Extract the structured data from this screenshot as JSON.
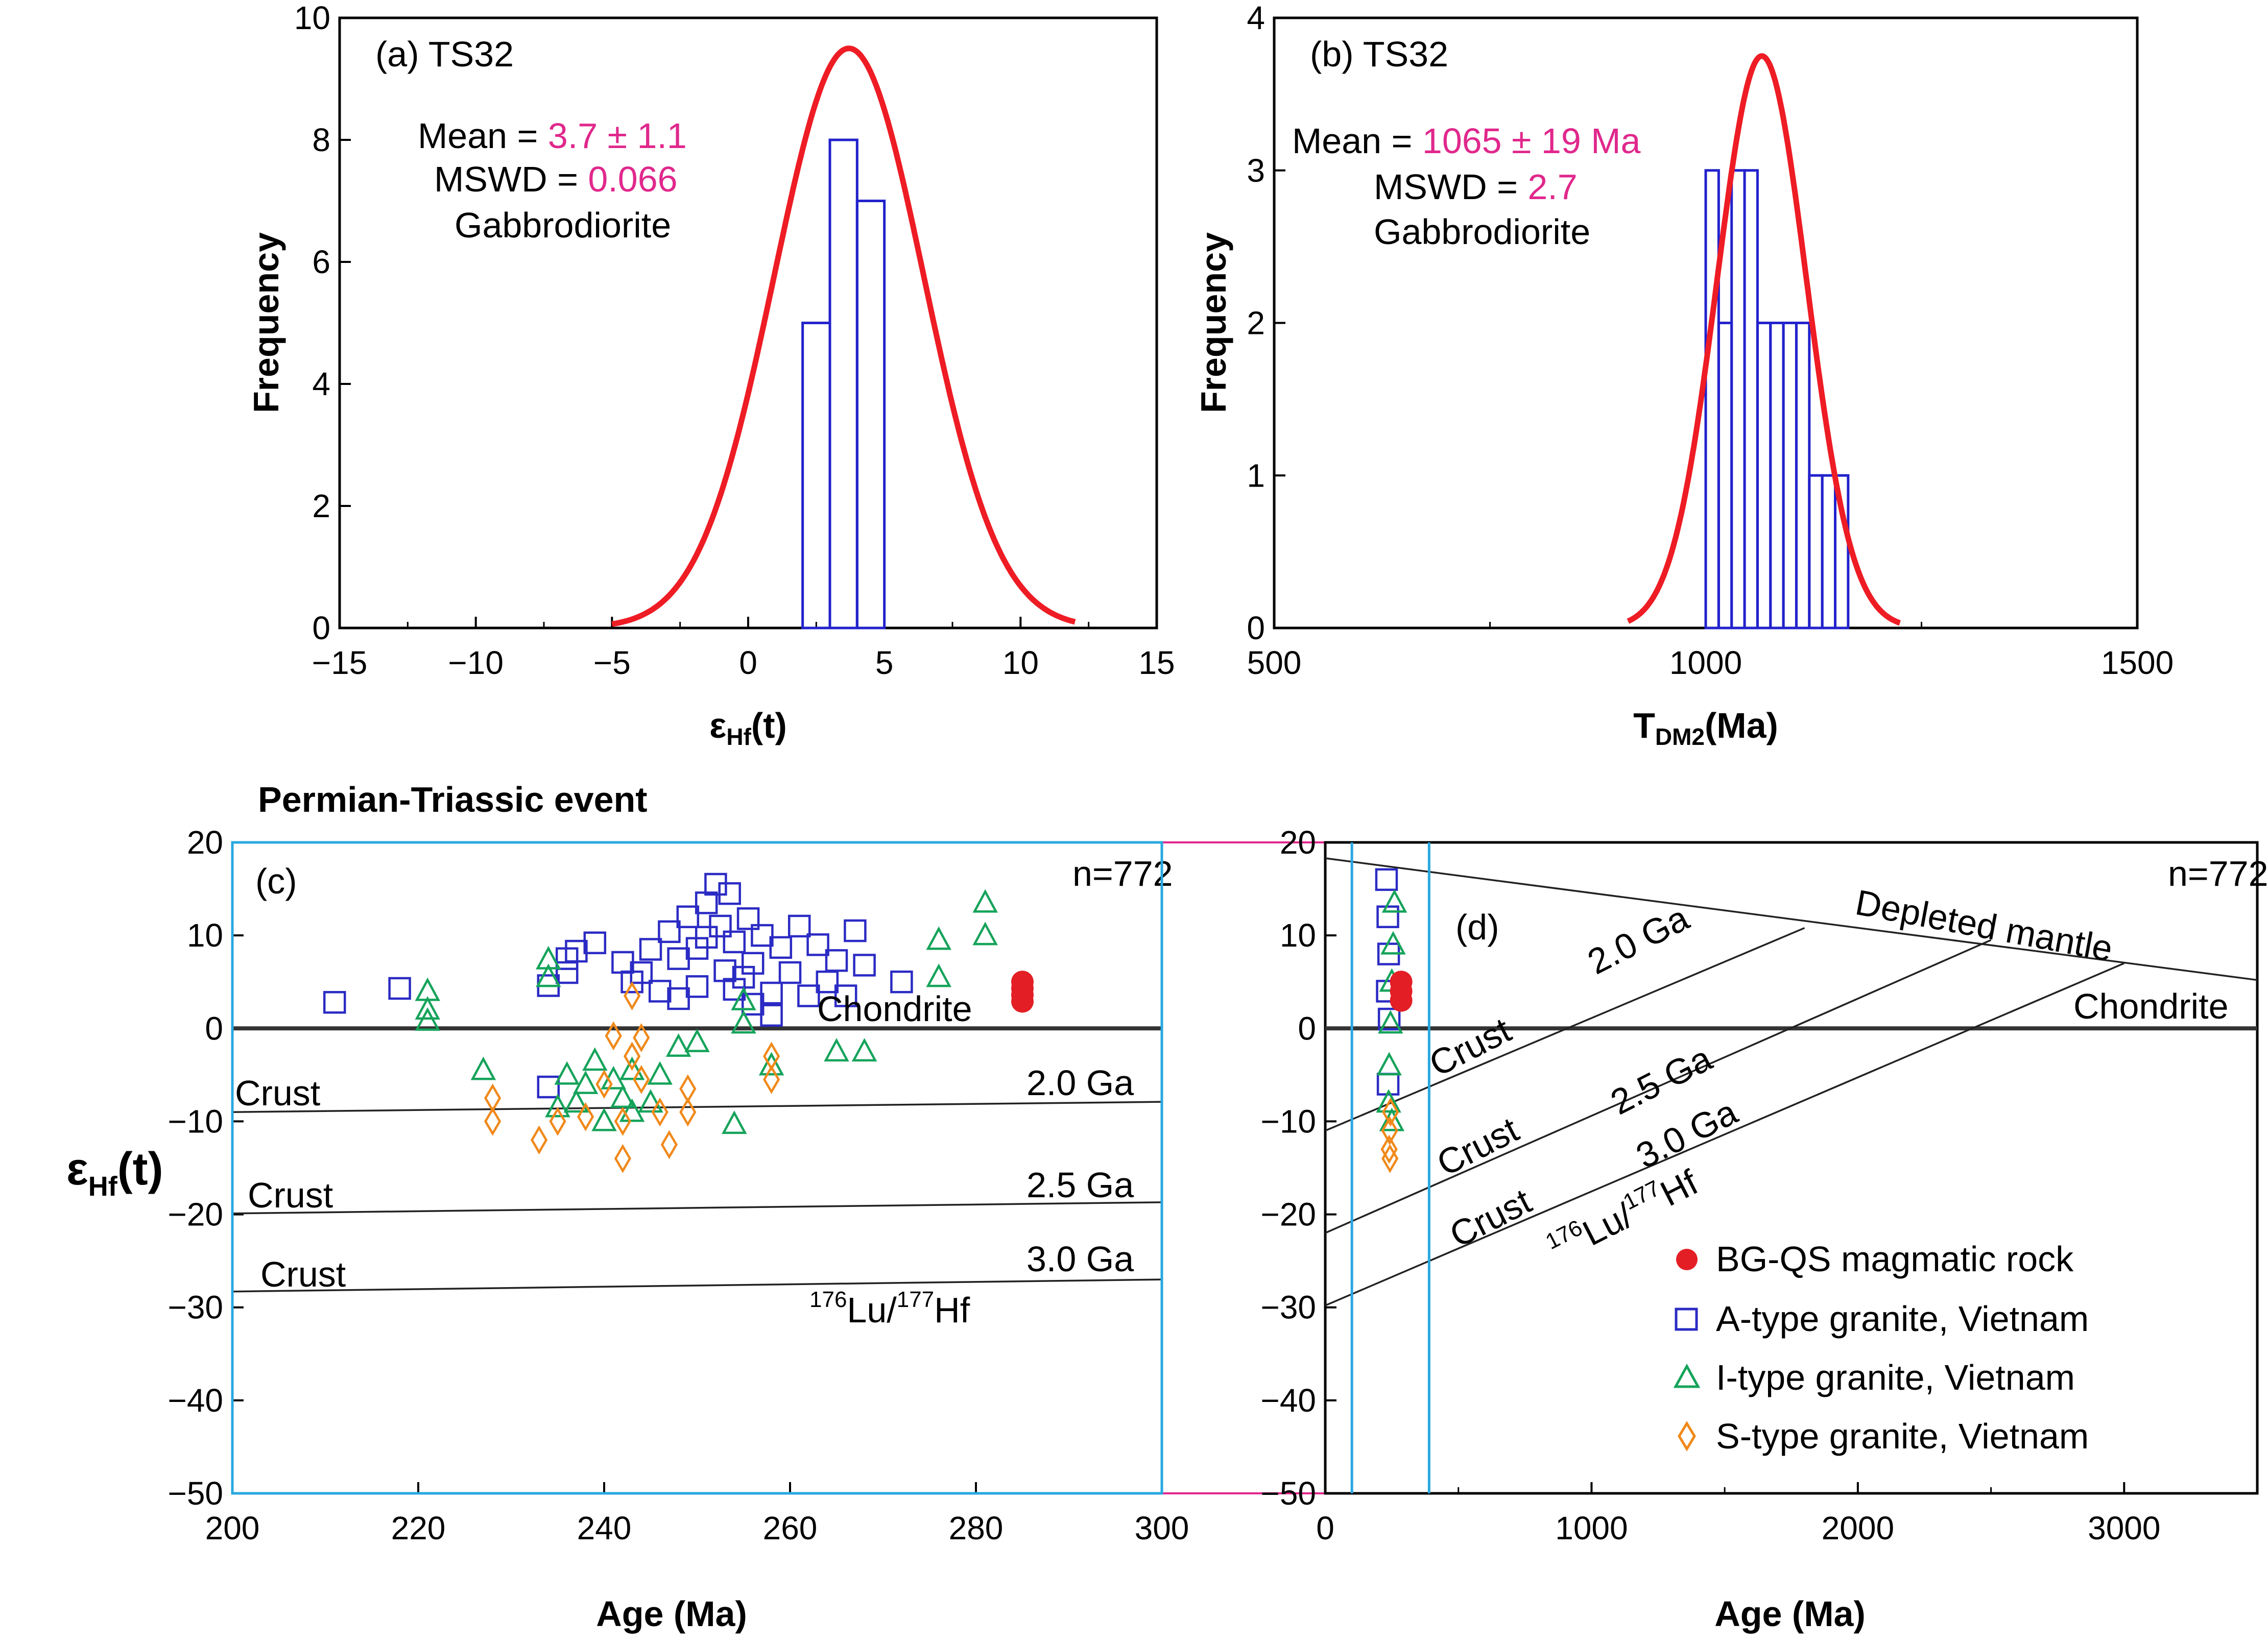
{
  "figure": {
    "section_title": "Permian-Triassic event"
  },
  "panel_a": {
    "label": "(a) TS32",
    "mean_label": "Mean = ",
    "mean_value": "3.7 ± 1.1",
    "mswd_label": "MSWD = ",
    "mswd_value": "0.066",
    "rock": "Gabbrodiorite",
    "xlabel_main": "ε",
    "xlabel_sub": "Hf",
    "xlabel_tail": "(t)",
    "ylabel": "Frequency"
  },
  "panel_b": {
    "label": "(b) TS32",
    "mean_label": "Mean = ",
    "mean_value": "1065 ± 19 Ma",
    "mswd_label": "MSWD = ",
    "mswd_value": "2.7",
    "rock": "Gabbrodiorite",
    "xlabel_main": "T",
    "xlabel_sub": "DM2",
    "xlabel_tail": "(Ma)",
    "ylabel": "Frequency"
  },
  "panel_c": {
    "label": "(c)",
    "n_label": "n=772",
    "xlabel": "Age (Ma)",
    "ylabel_main": "ε",
    "ylabel_sub": "Hf",
    "ylabel_tail": "(t)",
    "chondrite": "Chondrite",
    "crust": "Crust",
    "ga_2": "2.0 Ga",
    "ga_25": "2.5 Ga",
    "ga_3": "3.0 Ga",
    "lu_a": "176",
    "lu_b": "Lu/",
    "lu_c": "177",
    "lu_d": "Hf"
  },
  "panel_d": {
    "label": "(d)",
    "n_label": "n=772",
    "xlabel": "Age (Ma)",
    "depleted": "Depleted mantle",
    "chondrite": "Chondrite",
    "crust": "Crust",
    "ga_2": "2.0 Ga",
    "ga_25": "2.5 Ga",
    "ga_3": "3.0 Ga",
    "lu_a": "176",
    "lu_b": "Lu/",
    "lu_c": "177",
    "lu_d": "Hf"
  },
  "legend": {
    "bg_qs": "BG-QS magmatic rock",
    "a_type": "A-type granite, Vietnam",
    "i_type": "I-type granite, Vietnam",
    "s_type": "S-type granite, Vietnam"
  },
  "colors": {
    "red_curve": "#ee1c24",
    "histogram": "#2222cc",
    "a_type": "#2b2bc4",
    "i_type": "#15a35a",
    "s_type": "#f0891a",
    "bg_qs": "#e31e24",
    "zoom_box": "#29a8e0",
    "connector": "#e0288c",
    "magenta_text": "#e0288c"
  },
  "chart_data": [
    {
      "type": "bar",
      "panel": "a",
      "title": "(a) TS32",
      "xlabel": "εHf(t)",
      "ylabel": "Frequency",
      "xlim": [
        -15,
        15
      ],
      "ylim": [
        0,
        10
      ],
      "xticks": [
        -15,
        -10,
        -5,
        0,
        5,
        10,
        15
      ],
      "yticks": [
        0,
        2,
        4,
        6,
        8,
        10
      ],
      "bins": [
        {
          "x0": 2,
          "x1": 3,
          "count": 5
        },
        {
          "x0": 3,
          "x1": 4,
          "count": 8
        },
        {
          "x0": 4,
          "x1": 5,
          "count": 7
        }
      ],
      "curve": {
        "type": "gaussian",
        "mean": 3.7,
        "sd": 2.75,
        "peak": 9.5,
        "range": [
          -5,
          12
        ]
      }
    },
    {
      "type": "bar",
      "panel": "b",
      "title": "(b) TS32",
      "xlabel": "TDM2(Ma)",
      "ylabel": "Frequency",
      "xlim": [
        500,
        1500
      ],
      "ylim": [
        0,
        4
      ],
      "xticks": [
        500,
        1000,
        1500
      ],
      "yticks": [
        0,
        1,
        2,
        3,
        4
      ],
      "bins": [
        {
          "x0": 1000,
          "x1": 1015,
          "count": 3
        },
        {
          "x0": 1015,
          "x1": 1030,
          "count": 2
        },
        {
          "x0": 1030,
          "x1": 1045,
          "count": 3
        },
        {
          "x0": 1045,
          "x1": 1060,
          "count": 3
        },
        {
          "x0": 1060,
          "x1": 1075,
          "count": 2
        },
        {
          "x0": 1075,
          "x1": 1090,
          "count": 2
        },
        {
          "x0": 1090,
          "x1": 1105,
          "count": 2
        },
        {
          "x0": 1105,
          "x1": 1120,
          "count": 2
        },
        {
          "x0": 1120,
          "x1": 1135,
          "count": 1
        },
        {
          "x0": 1135,
          "x1": 1150,
          "count": 1
        },
        {
          "x0": 1150,
          "x1": 1165,
          "count": 1
        }
      ],
      "curve": {
        "type": "gaussian",
        "mean": 1065,
        "sd": 52,
        "peak": 3.75,
        "range": [
          910,
          1225
        ]
      }
    },
    {
      "type": "scatter",
      "panel": "c",
      "xlabel": "Age (Ma)",
      "ylabel": "εHf(t)",
      "xlim": [
        200,
        300
      ],
      "ylim": [
        -50,
        20
      ],
      "xticks": [
        200,
        220,
        240,
        260,
        280,
        300
      ],
      "yticks": [
        -50,
        -40,
        -30,
        -20,
        -10,
        0,
        10,
        20
      ],
      "reference_lines": [
        {
          "name": "Chondrite",
          "points": [
            [
              200,
              0
            ],
            [
              300,
              0
            ]
          ]
        },
        {
          "name": "2.0 Ga",
          "points": [
            [
              200,
              -9.0
            ],
            [
              300,
              -7.9
            ]
          ]
        },
        {
          "name": "2.5 Ga",
          "points": [
            [
              200,
              -19.9
            ],
            [
              300,
              -18.7
            ]
          ]
        },
        {
          "name": "3.0 Ga",
          "points": [
            [
              200,
              -28.3
            ],
            [
              300,
              -27.0
            ]
          ]
        }
      ],
      "series": [
        {
          "name": "A-type granite, Vietnam",
          "marker": "square",
          "points": [
            [
              211,
              2.8
            ],
            [
              218,
              4.3
            ],
            [
              234,
              4.6
            ],
            [
              236,
              7.5
            ],
            [
              237,
              8.3
            ],
            [
              239,
              9.2
            ],
            [
              242,
              7.1
            ],
            [
              244,
              6.0
            ],
            [
              245,
              8.5
            ],
            [
              246,
              4.0
            ],
            [
              247,
              10.4
            ],
            [
              248,
              3.2
            ],
            [
              249,
              12.0
            ],
            [
              250,
              8.6
            ],
            [
              251,
              13.5
            ],
            [
              252,
              15.5
            ],
            [
              252.5,
              11.0
            ],
            [
              253,
              6.2
            ],
            [
              253.5,
              14.5
            ],
            [
              254,
              9.3
            ],
            [
              255,
              5.5
            ],
            [
              255.5,
              11.8
            ],
            [
              256,
              7.0
            ],
            [
              257,
              10.0
            ],
            [
              258,
              3.8
            ],
            [
              259,
              8.7
            ],
            [
              260,
              6.0
            ],
            [
              261,
              11.0
            ],
            [
              262,
              3.5
            ],
            [
              263,
              9.0
            ],
            [
              264,
              5.0
            ],
            [
              265,
              7.3
            ],
            [
              266,
              3.5
            ],
            [
              267,
              10.5
            ],
            [
              268,
              6.8
            ],
            [
              272,
              5.0
            ],
            [
              234,
              -6.3
            ],
            [
              236,
              6.0
            ],
            [
              243,
              5.0
            ],
            [
              248,
              7.5
            ],
            [
              250,
              4.5
            ],
            [
              256,
              2.6
            ],
            [
              258,
              1.4
            ],
            [
              251,
              9.8
            ],
            [
              254,
              4.2
            ]
          ]
        },
        {
          "name": "I-type granite, Vietnam",
          "marker": "triangle",
          "points": [
            [
              221,
              4.0
            ],
            [
              221,
              2.0
            ],
            [
              221,
              0.8
            ],
            [
              227,
              -4.5
            ],
            [
              234,
              7.4
            ],
            [
              234,
              5.5
            ],
            [
              236,
              -5.0
            ],
            [
              237,
              -8.0
            ],
            [
              238,
              -6.0
            ],
            [
              239,
              -3.5
            ],
            [
              240,
              -10.0
            ],
            [
              241,
              -5.5
            ],
            [
              242,
              -7.5
            ],
            [
              243,
              -4.5
            ],
            [
              245,
              -8.0
            ],
            [
              246,
              -5.0
            ],
            [
              248,
              -2.0
            ],
            [
              250,
              -1.5
            ],
            [
              254,
              -10.3
            ],
            [
              255,
              0.5
            ],
            [
              255,
              3.0
            ],
            [
              258,
              -4.0
            ],
            [
              265,
              -2.5
            ],
            [
              268,
              -2.5
            ],
            [
              276,
              9.5
            ],
            [
              276,
              5.5
            ],
            [
              281,
              13.5
            ],
            [
              281,
              10.0
            ],
            [
              235,
              -8.5
            ],
            [
              243,
              -9.0
            ]
          ]
        },
        {
          "name": "S-type granite, Vietnam",
          "marker": "diamond",
          "points": [
            [
              228,
              -7.5
            ],
            [
              228,
              -10.0
            ],
            [
              233,
              -12.0
            ],
            [
              235,
              -10.0
            ],
            [
              238,
              -9.5
            ],
            [
              240,
              -6.0
            ],
            [
              241,
              -0.8
            ],
            [
              242,
              -14.0
            ],
            [
              242,
              -10.0
            ],
            [
              243,
              3.5
            ],
            [
              243,
              -3.0
            ],
            [
              244,
              -5.5
            ],
            [
              246,
              -9.0
            ],
            [
              247,
              -12.5
            ],
            [
              249,
              -9.0
            ],
            [
              249,
              -6.5
            ],
            [
              258,
              -3.0
            ],
            [
              258,
              -5.5
            ],
            [
              244,
              -1.0
            ]
          ]
        },
        {
          "name": "BG-QS magmatic rock",
          "marker": "circle",
          "points": [
            [
              285,
              5.0
            ],
            [
              285,
              4.3
            ],
            [
              285,
              3.6
            ],
            [
              285,
              2.9
            ]
          ]
        }
      ]
    },
    {
      "type": "scatter",
      "panel": "d",
      "xlabel": "Age (Ma)",
      "ylabel": "εHf(t)",
      "xlim": [
        0,
        3500
      ],
      "ylim": [
        -50,
        20
      ],
      "xticks": [
        0,
        1000,
        2000,
        3000
      ],
      "yticks": [
        -50,
        -40,
        -30,
        -20,
        -10,
        0,
        10,
        20
      ],
      "zoom_window": [
        100,
        390
      ],
      "reference_lines": [
        {
          "name": "Depleted mantle",
          "points": [
            [
              0,
              18.3
            ],
            [
              3500,
              5.2
            ]
          ]
        },
        {
          "name": "Chondrite",
          "points": [
            [
              0,
              0
            ],
            [
              3500,
              0
            ]
          ]
        },
        {
          "name": "2.0 Ga",
          "points": [
            [
              0,
              -11.0
            ],
            [
              1800,
              10.8
            ]
          ]
        },
        {
          "name": "2.5 Ga",
          "points": [
            [
              0,
              -22.0
            ],
            [
              2500,
              9.5
            ]
          ]
        },
        {
          "name": "3.0 Ga",
          "points": [
            [
              0,
              -29.8
            ],
            [
              3000,
              7.0
            ]
          ]
        }
      ],
      "series": [
        {
          "name": "A-type granite, Vietnam",
          "marker": "square",
          "points": [
            [
              230,
              16
            ],
            [
              235,
              12
            ],
            [
              238,
              8
            ],
            [
              233,
              4
            ],
            [
              240,
              1
            ],
            [
              236,
              -6
            ]
          ]
        },
        {
          "name": "I-type granite, Vietnam",
          "marker": "triangle",
          "points": [
            [
              260,
              13.5
            ],
            [
              255,
              9
            ],
            [
              250,
              5
            ],
            [
              245,
              0.5
            ],
            [
              240,
              -4
            ],
            [
              238,
              -8
            ],
            [
              250,
              -10
            ]
          ]
        },
        {
          "name": "S-type granite, Vietnam",
          "marker": "diamond",
          "points": [
            [
              245,
              -9
            ],
            [
              242,
              -11
            ],
            [
              240,
              -13
            ],
            [
              243,
              -14
            ]
          ]
        },
        {
          "name": "BG-QS magmatic rock",
          "marker": "circle",
          "points": [
            [
              285,
              5
            ],
            [
              285,
              4
            ],
            [
              285,
              3
            ]
          ]
        }
      ]
    }
  ]
}
